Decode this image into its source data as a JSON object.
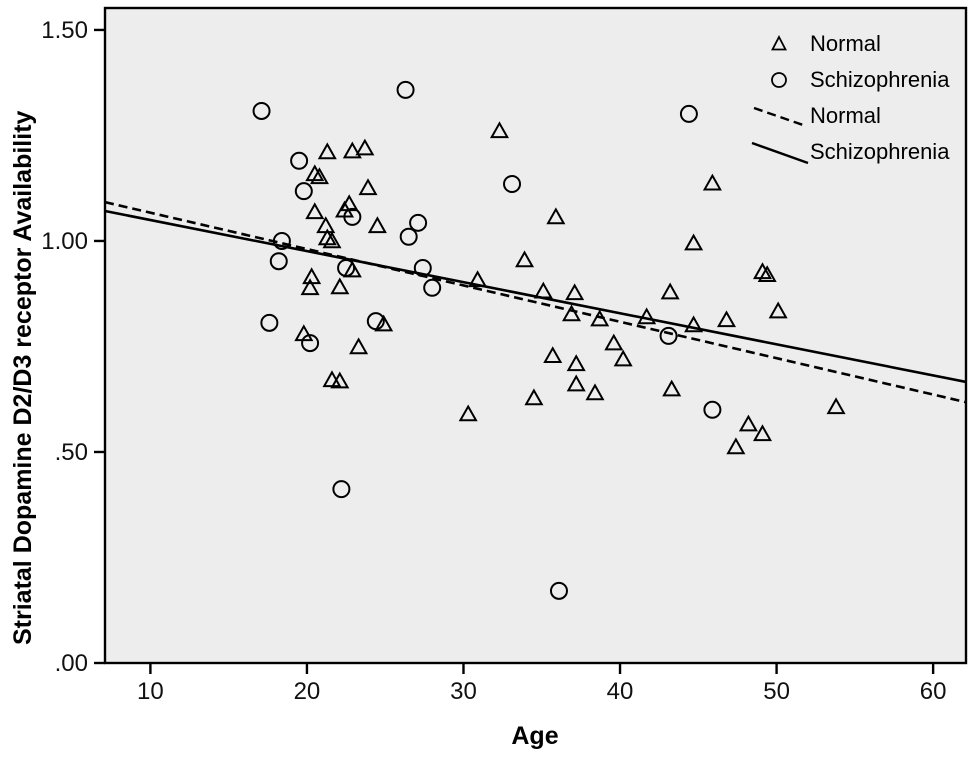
{
  "chart_data": {
    "type": "scatter",
    "title": "",
    "xlabel": "Age",
    "ylabel": "Striatal Dopamine D2/D3 receptor Availability",
    "xlim": [
      7.1,
      62.1
    ],
    "ylim": [
      0,
      1.552
    ],
    "grid": false,
    "plot_bg_color": "#ededed",
    "stroke_color": "#000000",
    "xticks": [
      {
        "v": 10,
        "label": "10"
      },
      {
        "v": 20,
        "label": "20"
      },
      {
        "v": 30,
        "label": "30"
      },
      {
        "v": 40,
        "label": "40"
      },
      {
        "v": 50,
        "label": "50"
      },
      {
        "v": 60,
        "label": "60"
      }
    ],
    "yticks": [
      {
        "v": 0.0,
        "label": ".00"
      },
      {
        "v": 0.5,
        "label": ".50"
      },
      {
        "v": 1.0,
        "label": "1.00"
      },
      {
        "v": 1.5,
        "label": "1.50"
      }
    ],
    "series": [
      {
        "name": "Normal",
        "marker": "triangle",
        "points": [
          [
            21.3,
            1.211
          ],
          [
            22.9,
            1.213
          ],
          [
            23.7,
            1.22
          ],
          [
            20.5,
            1.159
          ],
          [
            20.8,
            1.152
          ],
          [
            23.9,
            1.126
          ],
          [
            22.7,
            1.088
          ],
          [
            22.4,
            1.073
          ],
          [
            20.5,
            1.069
          ],
          [
            21.2,
            1.036
          ],
          [
            24.5,
            1.036
          ],
          [
            21.3,
            1.007
          ],
          [
            21.6,
            1.0
          ],
          [
            20.3,
            0.915
          ],
          [
            20.2,
            0.889
          ],
          [
            22.1,
            0.891
          ],
          [
            22.9,
            0.931
          ],
          [
            24.9,
            0.803
          ],
          [
            19.8,
            0.78
          ],
          [
            23.3,
            0.749
          ],
          [
            21.6,
            0.671
          ],
          [
            22.1,
            0.668
          ],
          [
            32.3,
            1.261
          ],
          [
            35.9,
            1.057
          ],
          [
            33.9,
            0.955
          ],
          [
            30.9,
            0.908
          ],
          [
            35.1,
            0.881
          ],
          [
            37.1,
            0.877
          ],
          [
            36.9,
            0.827
          ],
          [
            38.7,
            0.815
          ],
          [
            41.7,
            0.82
          ],
          [
            39.6,
            0.758
          ],
          [
            35.7,
            0.728
          ],
          [
            40.2,
            0.72
          ],
          [
            37.2,
            0.709
          ],
          [
            37.2,
            0.661
          ],
          [
            38.4,
            0.64
          ],
          [
            34.5,
            0.628
          ],
          [
            30.3,
            0.59
          ],
          [
            44.7,
            0.995
          ],
          [
            45.9,
            1.137
          ],
          [
            49.1,
            0.927
          ],
          [
            49.4,
            0.92
          ],
          [
            43.2,
            0.879
          ],
          [
            50.1,
            0.834
          ],
          [
            46.8,
            0.813
          ],
          [
            44.7,
            0.801
          ],
          [
            43.3,
            0.649
          ],
          [
            53.8,
            0.607
          ],
          [
            48.2,
            0.566
          ],
          [
            49.1,
            0.543
          ],
          [
            47.4,
            0.512
          ]
        ]
      },
      {
        "name": "Schizophrenia",
        "marker": "circle",
        "points": [
          [
            26.3,
            1.358
          ],
          [
            17.1,
            1.308
          ],
          [
            44.4,
            1.301
          ],
          [
            19.5,
            1.19
          ],
          [
            33.1,
            1.135
          ],
          [
            19.8,
            1.118
          ],
          [
            22.9,
            1.057
          ],
          [
            27.1,
            1.043
          ],
          [
            26.5,
            1.01
          ],
          [
            18.4,
            1.0
          ],
          [
            18.2,
            0.952
          ],
          [
            22.5,
            0.936
          ],
          [
            27.4,
            0.936
          ],
          [
            28.0,
            0.889
          ],
          [
            24.4,
            0.81
          ],
          [
            17.6,
            0.806
          ],
          [
            20.2,
            0.758
          ],
          [
            43.1,
            0.775
          ],
          [
            45.9,
            0.6
          ],
          [
            22.2,
            0.412
          ],
          [
            36.1,
            0.171
          ]
        ]
      }
    ],
    "fit_lines": [
      {
        "name": "Normal",
        "style": "dashed",
        "x": [
          7.1,
          62.1
        ],
        "y": [
          1.092,
          0.618
        ]
      },
      {
        "name": "Schizophrenia",
        "style": "solid",
        "x": [
          7.1,
          62.1
        ],
        "y": [
          1.071,
          0.666
        ]
      }
    ],
    "legend": {
      "position": "top-right",
      "items": [
        {
          "icon": "triangle-marker",
          "label": "Normal"
        },
        {
          "icon": "circle-marker",
          "label": "Schizophrenia"
        },
        {
          "icon": "dashed-line",
          "label": "Normal"
        },
        {
          "icon": "solid-line",
          "label": "Schizophrenia"
        }
      ]
    }
  }
}
